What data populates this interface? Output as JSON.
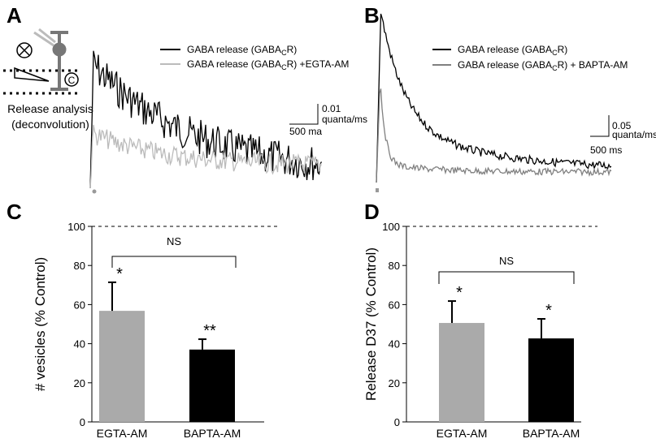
{
  "panels": [
    {
      "letter": "A",
      "icon_label": "C",
      "caption": [
        "Release analysis",
        "(deconvolution)"
      ],
      "legend": [
        {
          "before": "GABA release (GABA",
          "sub": "C",
          "after": "R)"
        },
        {
          "before": "GABA release (GABA",
          "sub": "C",
          "after": "R) +EGTA-AM"
        }
      ],
      "scale_bar": {
        "y_value": "0.01",
        "y_unit": "quanta/ms",
        "x_label": "500 ma"
      }
    },
    {
      "letter": "B",
      "legend": [
        {
          "before": "GABA release (GABA",
          "sub": "C",
          "after": "R)"
        },
        {
          "before": "GABA release (GABA",
          "sub": "C",
          "after": "R) + BAPTA-AM"
        }
      ],
      "scale_bar": {
        "y_value": "0.05",
        "y_unit": "quanta/ms",
        "x_label": "500 ms"
      }
    }
  ],
  "chart_data": [
    {
      "type": "bar",
      "letter": "C",
      "y_label": "# vesicles (% Control)",
      "categories": [
        "EGTA-AM",
        "BAPTA-AM"
      ],
      "values": [
        56.8,
        37
      ],
      "errors": [
        14.6,
        5.3
      ],
      "significance": [
        "*",
        "**"
      ],
      "colors": [
        "#aaaaaa",
        "#000000"
      ],
      "comparison": "NS",
      "reference_line": 100,
      "ylim": [
        0,
        100
      ],
      "yticks": [
        0,
        20,
        40,
        60,
        80,
        100
      ]
    },
    {
      "type": "bar",
      "letter": "D",
      "y_label": "Release D37  (% Control)",
      "categories": [
        "EGTA-AM",
        "BAPTA-AM"
      ],
      "values": [
        50.6,
        42.7
      ],
      "errors": [
        11.2,
        10
      ],
      "significance": [
        "*",
        "*"
      ],
      "colors": [
        "#aaaaaa",
        "#000000"
      ],
      "comparison": "NS",
      "reference_line": 100,
      "ylim": [
        0,
        100
      ],
      "yticks": [
        0,
        20,
        40,
        60,
        80,
        100
      ]
    }
  ]
}
